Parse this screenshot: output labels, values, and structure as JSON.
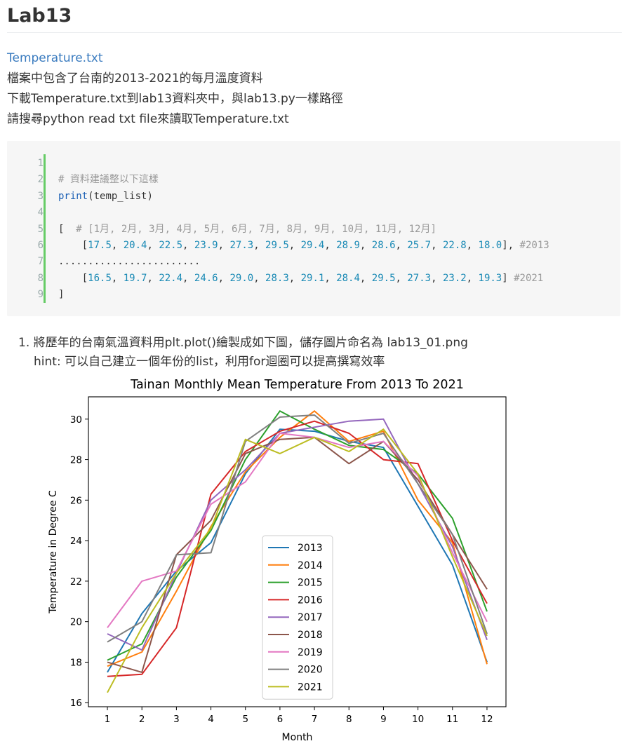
{
  "page": {
    "title": "Lab13",
    "file_link": "Temperature.txt",
    "intro_lines": [
      "檔案中包含了台南的2013-2021的每月溫度資料",
      "下載Temperature.txt到lab13資料夾中，與lab13.py一樣路徑",
      "請搜尋python read txt file來讀取Temperature.txt"
    ]
  },
  "code": {
    "line_numbers": [
      "1",
      "2",
      "3",
      "4",
      "5",
      "6",
      "7",
      "8",
      "9"
    ],
    "comment1": "# 資料建議整以下這樣",
    "print_kw": "print",
    "print_arg": "(temp_list)",
    "open_bracket": "[",
    "month_comment": "# [1月, 2月, 3月, 4月, 5月, 6月, 7月, 8月, 9月, 10月, 11月, 12月]",
    "row1_values": [
      "17.5",
      "20.4",
      "22.5",
      "23.9",
      "27.3",
      "29.5",
      "29.4",
      "28.9",
      "28.6",
      "25.7",
      "22.8",
      "18.0"
    ],
    "row1_comment": "#2013",
    "ellipsis": "........................",
    "row2_values": [
      "16.5",
      "19.7",
      "22.4",
      "24.6",
      "29.0",
      "28.3",
      "29.1",
      "28.4",
      "29.5",
      "27.3",
      "23.2",
      "19.3"
    ],
    "row2_comment": "#2021",
    "close_bracket": "]"
  },
  "task": {
    "line1": "1. 將歷年的台南氣溫資料用plt.plot()繪製成如下圖，儲存圖片命名為 lab13_01.png",
    "line2": "hint: 可以自己建立一個年份的list，利用for迴圈可以提高撰寫效率"
  },
  "chart_data": {
    "type": "line",
    "title": "Tainan Monthly Mean Temperature From 2013 To 2021",
    "xlabel": "Month",
    "ylabel": "Temperature in Degree C",
    "x": [
      1,
      2,
      3,
      4,
      5,
      6,
      7,
      8,
      9,
      10,
      11,
      12
    ],
    "xlim": [
      0.45,
      12.55
    ],
    "ylim": [
      15.8,
      31.1
    ],
    "yticks": [
      16,
      18,
      20,
      22,
      24,
      26,
      28,
      30
    ],
    "legend_position": "lower-center",
    "grid": false,
    "series": [
      {
        "name": "2013",
        "color": "#1f77b4",
        "values": [
          17.5,
          20.4,
          22.5,
          23.9,
          27.3,
          29.5,
          29.4,
          28.9,
          28.6,
          25.7,
          22.8,
          18.0
        ]
      },
      {
        "name": "2014",
        "color": "#ff7f0e",
        "values": [
          17.8,
          18.5,
          21.5,
          24.7,
          27.4,
          29.1,
          30.4,
          28.9,
          29.4,
          26.0,
          23.9,
          17.9
        ]
      },
      {
        "name": "2015",
        "color": "#2ca02c",
        "values": [
          18.1,
          18.9,
          22.2,
          24.5,
          28.0,
          30.4,
          29.5,
          28.7,
          28.5,
          27.3,
          25.1,
          20.5
        ]
      },
      {
        "name": "2016",
        "color": "#d62728",
        "values": [
          17.3,
          17.4,
          19.7,
          26.3,
          28.4,
          29.4,
          29.9,
          29.3,
          28.0,
          27.8,
          24.0,
          20.9
        ]
      },
      {
        "name": "2017",
        "color": "#9467bd",
        "values": [
          19.4,
          18.6,
          22.4,
          26.0,
          27.5,
          29.3,
          29.6,
          29.9,
          30.0,
          26.8,
          23.7,
          19.1
        ]
      },
      {
        "name": "2018",
        "color": "#8c564b",
        "values": [
          18.0,
          17.5,
          23.3,
          25.0,
          28.3,
          29.0,
          29.1,
          27.8,
          28.9,
          27.0,
          24.3,
          21.6
        ]
      },
      {
        "name": "2019",
        "color": "#e377c2",
        "values": [
          19.7,
          22.0,
          22.5,
          25.8,
          26.9,
          29.3,
          29.1,
          28.6,
          28.9,
          27.2,
          23.4,
          20.0
        ]
      },
      {
        "name": "2020",
        "color": "#7f7f7f",
        "values": [
          19.0,
          20.0,
          23.3,
          23.4,
          28.9,
          30.1,
          30.2,
          28.8,
          29.3,
          26.8,
          24.3,
          19.4
        ]
      },
      {
        "name": "2021",
        "color": "#bcbd22",
        "values": [
          16.5,
          19.7,
          22.4,
          24.6,
          29.0,
          28.3,
          29.1,
          28.4,
          29.5,
          27.3,
          23.2,
          19.3
        ]
      }
    ]
  }
}
